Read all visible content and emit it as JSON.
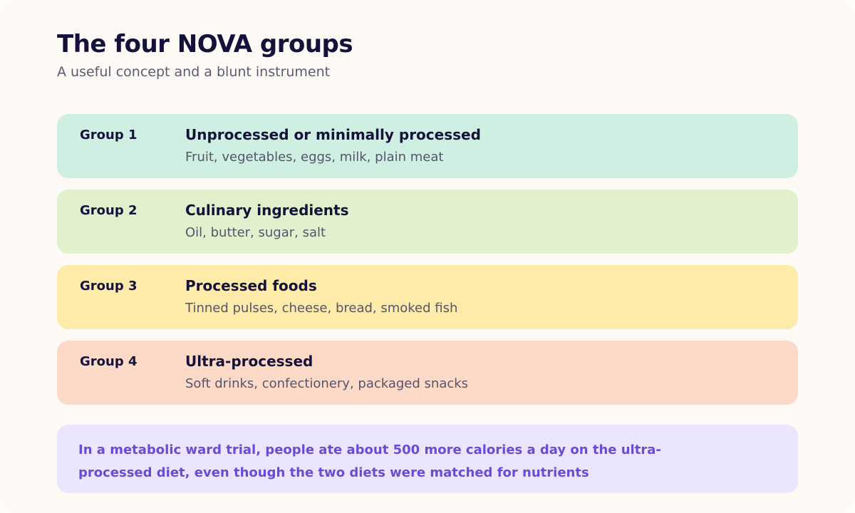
{
  "header": {
    "title": "The four NOVA groups",
    "subtitle": "A useful concept and a blunt instrument"
  },
  "groups": [
    {
      "label": "Group 1",
      "name": "Unprocessed or minimally processed",
      "examples": "Fruit, vegetables, eggs, milk, plain meat",
      "color": "#d0efe3"
    },
    {
      "label": "Group 2",
      "name": "Culinary ingredients",
      "examples": "Oil, butter, sugar, salt",
      "color": "#e1f0cd"
    },
    {
      "label": "Group 3",
      "name": "Processed foods",
      "examples": "Tinned pulses, cheese, bread, smoked fish",
      "color": "#feeba9"
    },
    {
      "label": "Group 4",
      "name": "Ultra-processed",
      "examples": "Soft drinks, confectionery, packaged snacks",
      "color": "#fdd9c8"
    }
  ],
  "callout": {
    "text": "In a metabolic ward trial, people ate about 500 more calories a day on the ultra-processed diet, even though the two diets were matched for nutrients",
    "color": "#6a4bd6",
    "background": "#ebe6fd"
  }
}
